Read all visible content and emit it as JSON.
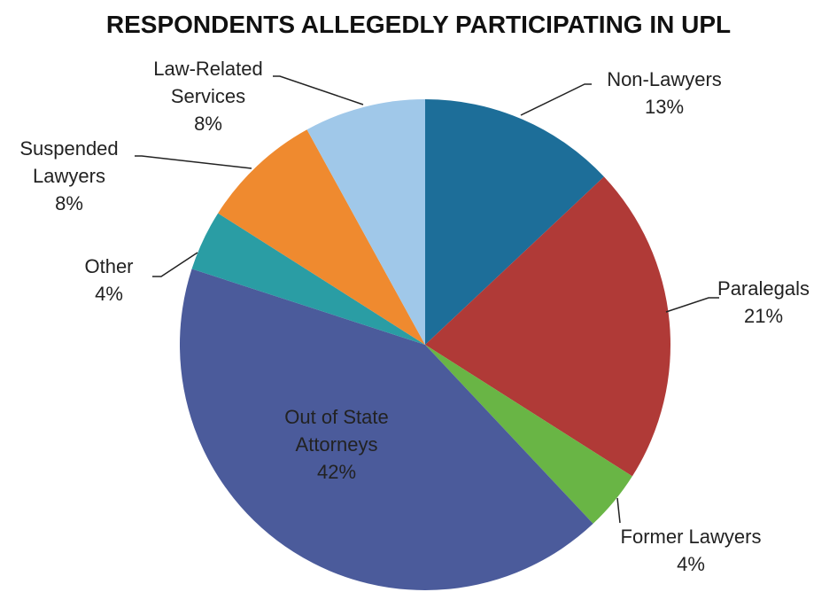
{
  "chart_data": {
    "type": "pie",
    "title": "RESPONDENTS ALLEGEDLY PARTICIPATING IN UPL",
    "categories": [
      "Non-Lawyers",
      "Paralegals",
      "Former Lawyers",
      "Out of State Attorneys",
      "Other",
      "Suspended Lawyers",
      "Law-Related Services"
    ],
    "values": [
      13,
      21,
      4,
      42,
      4,
      8,
      8
    ],
    "value_labels": [
      "13%",
      "21%",
      "4%",
      "42%",
      "4%",
      "8%",
      "8%"
    ],
    "colors": [
      "#1d6e99",
      "#b03a37",
      "#69b545",
      "#4b5b9b",
      "#2a9da4",
      "#ef8a2f",
      "#a0c8e9"
    ]
  }
}
